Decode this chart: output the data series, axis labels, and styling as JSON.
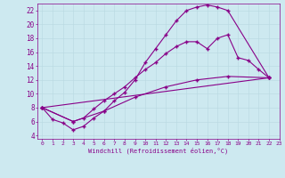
{
  "xlabel": "Windchill (Refroidissement éolien,°C)",
  "bg_color": "#cde9f0",
  "line_color": "#880088",
  "xlim": [
    -0.5,
    23
  ],
  "ylim": [
    3.5,
    23
  ],
  "xticks": [
    0,
    1,
    2,
    3,
    4,
    5,
    6,
    7,
    8,
    9,
    10,
    11,
    12,
    13,
    14,
    15,
    16,
    17,
    18,
    19,
    20,
    21,
    22,
    23
  ],
  "yticks": [
    4,
    6,
    8,
    10,
    12,
    14,
    16,
    18,
    20,
    22
  ],
  "curve1_x": [
    0,
    1,
    2,
    3,
    4,
    5,
    6,
    7,
    8,
    9,
    10,
    11,
    12,
    13,
    14,
    15,
    16,
    17,
    18,
    22
  ],
  "curve1_y": [
    8,
    6.3,
    5.8,
    4.8,
    5.3,
    6.5,
    7.5,
    9.0,
    10.2,
    12.0,
    14.5,
    16.5,
    18.5,
    20.5,
    22.0,
    22.5,
    22.8,
    22.5,
    22.0,
    12.3
  ],
  "curve2_x": [
    0,
    3,
    4,
    5,
    6,
    7,
    8,
    9,
    10,
    11,
    12,
    13,
    14,
    15,
    16,
    17,
    18,
    19,
    20,
    21,
    22
  ],
  "curve2_y": [
    8,
    6.0,
    6.5,
    7.8,
    9.0,
    10.0,
    11.0,
    12.3,
    13.5,
    14.5,
    15.8,
    16.8,
    17.5,
    17.5,
    16.5,
    18.0,
    18.5,
    15.2,
    14.8,
    13.5,
    12.3
  ],
  "curve3_x": [
    0,
    3,
    6,
    9,
    12,
    15,
    18,
    22
  ],
  "curve3_y": [
    8,
    6.0,
    7.5,
    9.5,
    11.0,
    12.0,
    12.5,
    12.3
  ],
  "curve4_x": [
    0,
    22
  ],
  "curve4_y": [
    8.0,
    12.3
  ]
}
